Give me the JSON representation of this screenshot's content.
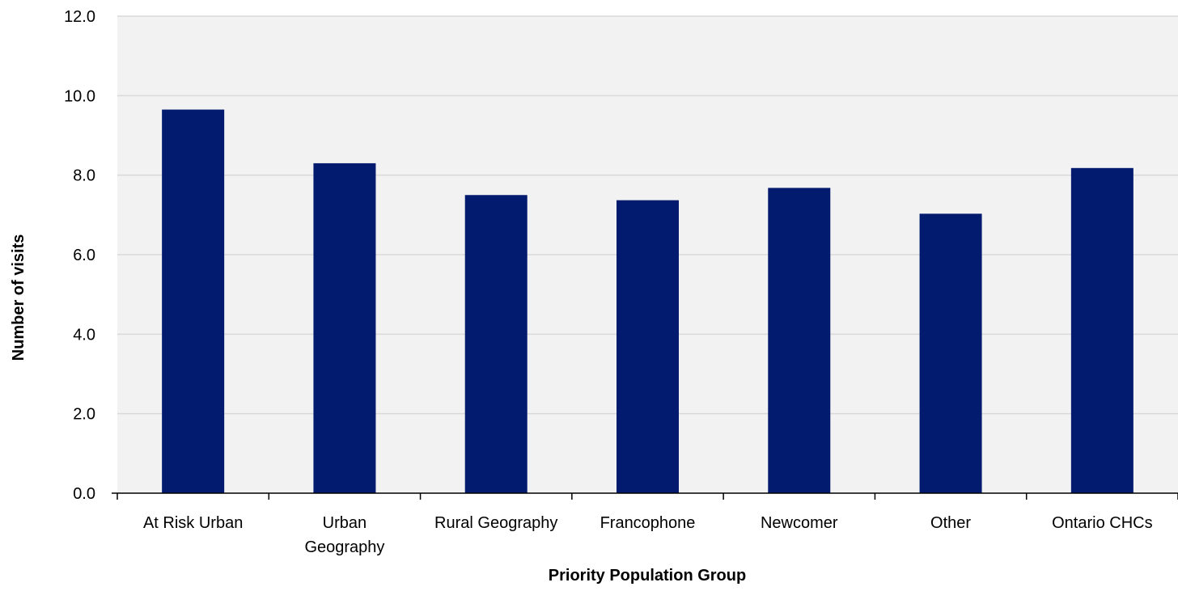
{
  "chart_data": {
    "type": "bar",
    "title": "",
    "xlabel": "Priority Population Group",
    "ylabel": "Number of visits",
    "categories": [
      "At Risk Urban",
      "Urban Geography",
      "Rural Geography",
      "Francophone",
      "Newcomer",
      "Other",
      "Ontario CHCs"
    ],
    "category_label_lines": [
      [
        "At Risk Urban"
      ],
      [
        "Urban",
        "Geography"
      ],
      [
        "Rural Geography"
      ],
      [
        "Francophone"
      ],
      [
        "Newcomer"
      ],
      [
        "Other"
      ],
      [
        "Ontario CHCs"
      ]
    ],
    "values": [
      9.65,
      8.3,
      7.5,
      7.37,
      7.68,
      7.03,
      8.18
    ],
    "ylim": [
      0,
      12
    ],
    "yticks": [
      "0.0",
      "2.0",
      "4.0",
      "6.0",
      "8.0",
      "10.0",
      "12.0"
    ],
    "grid": true,
    "legend": "none",
    "colors": {
      "bar": "#021b6f",
      "grid": "#d9d9d9",
      "plot_background": "#f2f2f2",
      "axis": "#000000"
    }
  }
}
